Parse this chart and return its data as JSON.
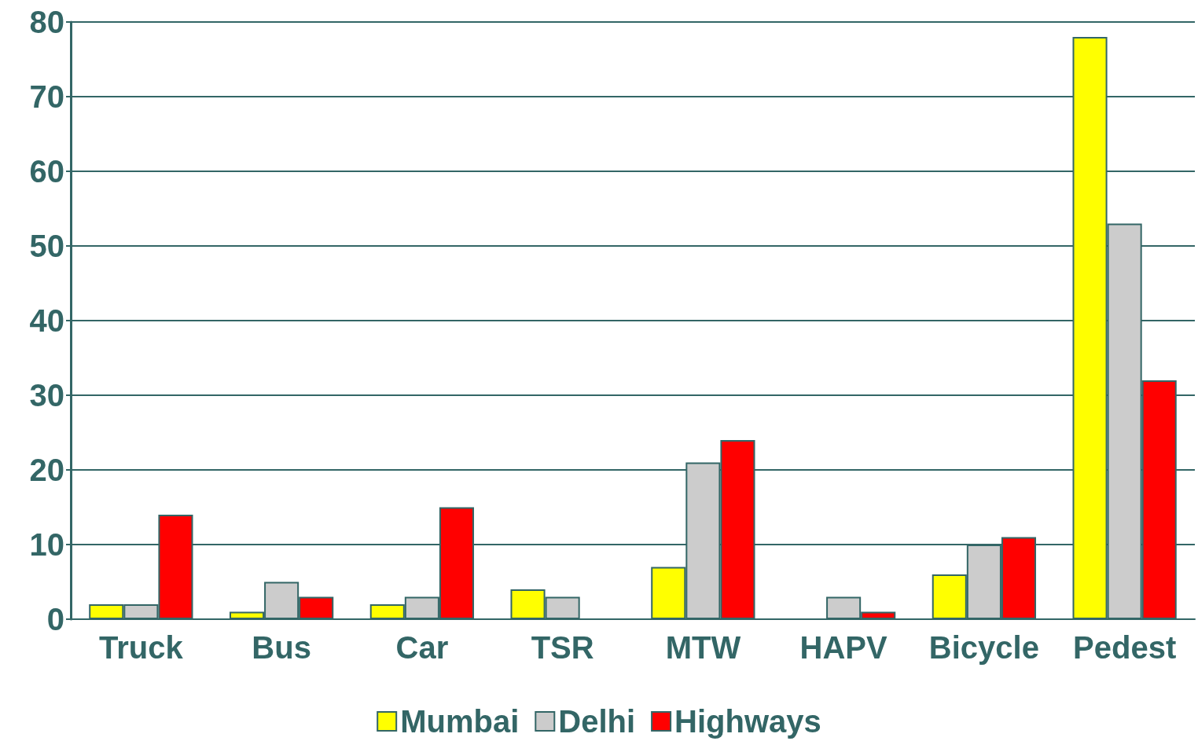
{
  "chart_data": {
    "type": "bar",
    "categories": [
      "Truck",
      "Bus",
      "Car",
      "TSR",
      "MTW",
      "HAPV",
      "Bicycle",
      "Pedest"
    ],
    "series": [
      {
        "name": "Mumbai",
        "color": "#ffff00",
        "values": [
          2,
          1,
          2,
          4,
          7,
          null,
          6,
          78
        ]
      },
      {
        "name": "Delhi",
        "color": "#cccccc",
        "values": [
          2,
          5,
          3,
          3,
          21,
          3,
          10,
          53
        ]
      },
      {
        "name": "Highways",
        "color": "#ff0000",
        "values": [
          14,
          3,
          15,
          null,
          24,
          1,
          11,
          32
        ]
      }
    ],
    "ylim": [
      0,
      80
    ],
    "yticks": [
      0,
      10,
      20,
      30,
      40,
      50,
      60,
      70,
      80
    ],
    "grid": "y",
    "legend": "bottom"
  }
}
